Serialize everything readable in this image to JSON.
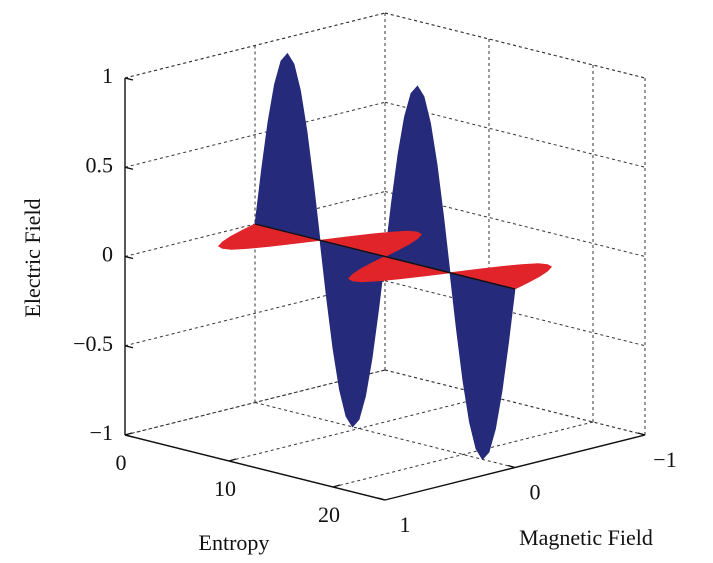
{
  "chart_data": {
    "type": "wave3d",
    "xlabel": "Entropy",
    "ylabel": "Magnetic Field",
    "zlabel": "Electric Field",
    "xlim": [
      0,
      25
    ],
    "ylim": [
      -1,
      1
    ],
    "zlim": [
      -1,
      1
    ],
    "xticks": [
      0,
      10,
      20
    ],
    "yticks": [
      {
        "value": -1,
        "label": "−1"
      },
      0,
      1
    ],
    "zticks": [
      1,
      0.5,
      0,
      {
        "value": -0.5,
        "label": "−0.5"
      },
      {
        "value": -1,
        "label": "−1"
      }
    ],
    "grid": true,
    "x": [
      0,
      0.625,
      1.25,
      1.875,
      2.5,
      3.125,
      3.75,
      4.375,
      5,
      5.625,
      6.25,
      6.875,
      7.5,
      8.125,
      8.75,
      9.375,
      10,
      10.625,
      11.25,
      11.875,
      12.5,
      13.125,
      13.75,
      14.375,
      15,
      15.625,
      16.25,
      16.875,
      17.5,
      18.125,
      18.75,
      19.375,
      20,
      20.625,
      21.25,
      21.875,
      22.5,
      23.125,
      23.75,
      24.375,
      25
    ],
    "series": [
      {
        "color": "#262a7a",
        "plane": "z",
        "values": [
          0,
          0.31,
          0.59,
          0.81,
          0.95,
          1,
          0.95,
          0.81,
          0.59,
          0.31,
          0,
          -0.31,
          -0.59,
          -0.81,
          -0.95,
          -1,
          -0.95,
          -0.81,
          -0.59,
          -0.31,
          0,
          0.31,
          0.59,
          0.81,
          0.95,
          1,
          0.95,
          0.81,
          0.59,
          0.31,
          0,
          -0.31,
          -0.59,
          -0.81,
          -0.95,
          -1,
          -0.95,
          -0.81,
          -0.59,
          -0.31,
          0
        ]
      },
      {
        "color": "#e0242a",
        "plane": "y",
        "values": [
          0,
          0.15,
          0.29,
          0.4,
          0.48,
          0.5,
          0.48,
          0.4,
          0.29,
          0.15,
          0,
          -0.15,
          -0.29,
          -0.4,
          -0.48,
          -0.5,
          -0.48,
          -0.4,
          -0.29,
          -0.15,
          0,
          0.15,
          0.29,
          0.4,
          0.48,
          0.5,
          0.48,
          0.4,
          0.29,
          0.15,
          0,
          -0.15,
          -0.29,
          -0.4,
          -0.48,
          -0.5,
          -0.48,
          -0.4,
          -0.29,
          -0.15,
          0
        ]
      }
    ]
  }
}
